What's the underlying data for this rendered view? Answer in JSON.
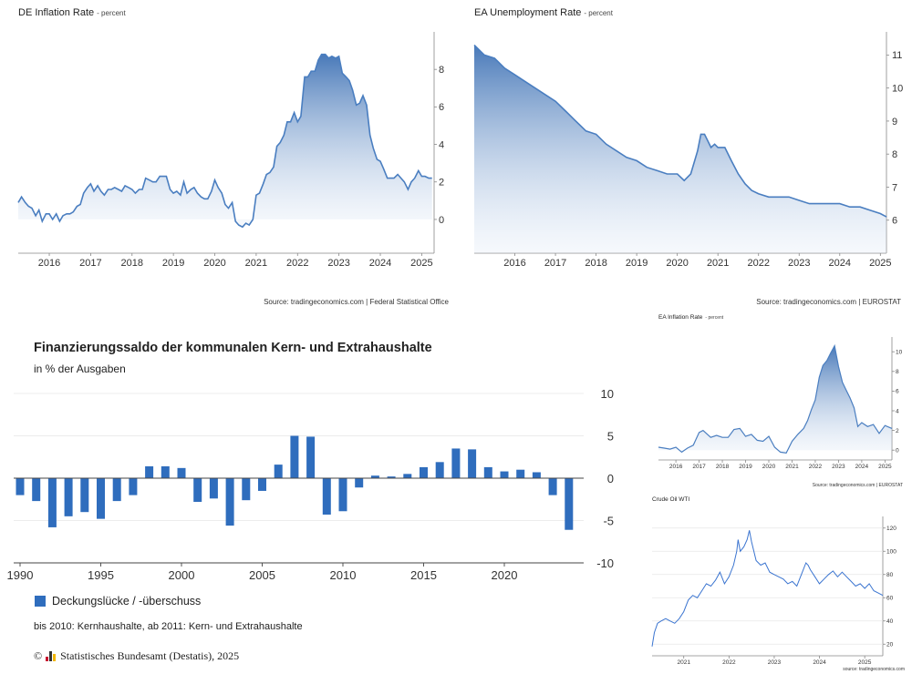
{
  "chart_data": [
    {
      "id": "de_inflation",
      "type": "area",
      "title": "DE Inflation Rate",
      "unit": "- percent",
      "source": "Source: tradingeconomics.com | Federal Statistical Office",
      "x_ticks": [
        "2016",
        "2017",
        "2018",
        "2019",
        "2020",
        "2021",
        "2022",
        "2023",
        "2024",
        "2025"
      ],
      "y_ticks": [
        "0",
        "2",
        "4",
        "6",
        "8"
      ],
      "ylim": [
        -1.8,
        10
      ],
      "xlim": [
        2015.25,
        2025.3
      ],
      "x": [
        2015.25,
        2015.33,
        2015.42,
        2015.5,
        2015.58,
        2015.67,
        2015.75,
        2015.83,
        2015.92,
        2016.0,
        2016.08,
        2016.17,
        2016.25,
        2016.33,
        2016.42,
        2016.5,
        2016.58,
        2016.67,
        2016.75,
        2016.83,
        2016.92,
        2017.0,
        2017.08,
        2017.17,
        2017.25,
        2017.33,
        2017.42,
        2017.5,
        2017.58,
        2017.67,
        2017.75,
        2017.83,
        2017.92,
        2018.0,
        2018.08,
        2018.17,
        2018.25,
        2018.33,
        2018.42,
        2018.5,
        2018.58,
        2018.67,
        2018.75,
        2018.83,
        2018.92,
        2019.0,
        2019.08,
        2019.17,
        2019.25,
        2019.33,
        2019.42,
        2019.5,
        2019.58,
        2019.67,
        2019.75,
        2019.83,
        2019.92,
        2020.0,
        2020.08,
        2020.17,
        2020.25,
        2020.33,
        2020.42,
        2020.5,
        2020.58,
        2020.67,
        2020.75,
        2020.83,
        2020.92,
        2021.0,
        2021.08,
        2021.17,
        2021.25,
        2021.33,
        2021.42,
        2021.5,
        2021.58,
        2021.67,
        2021.75,
        2021.83,
        2021.92,
        2022.0,
        2022.08,
        2022.17,
        2022.25,
        2022.33,
        2022.42,
        2022.5,
        2022.58,
        2022.67,
        2022.75,
        2022.83,
        2022.92,
        2023.0,
        2023.08,
        2023.17,
        2023.25,
        2023.33,
        2023.42,
        2023.5,
        2023.58,
        2023.67,
        2023.75,
        2023.83,
        2023.92,
        2024.0,
        2024.08,
        2024.17,
        2024.25,
        2024.33,
        2024.42,
        2024.5,
        2024.58,
        2024.67,
        2024.75,
        2024.83,
        2024.92,
        2025.0,
        2025.08,
        2025.17,
        2025.25
      ],
      "values": [
        0.9,
        1.2,
        0.9,
        0.7,
        0.6,
        0.2,
        0.5,
        -0.1,
        0.3,
        0.3,
        0.0,
        0.3,
        -0.1,
        0.2,
        0.3,
        0.3,
        0.4,
        0.7,
        0.8,
        1.4,
        1.7,
        1.9,
        1.5,
        1.8,
        1.5,
        1.3,
        1.6,
        1.6,
        1.7,
        1.6,
        1.5,
        1.8,
        1.7,
        1.6,
        1.4,
        1.6,
        1.6,
        2.2,
        2.1,
        2.0,
        2.0,
        2.3,
        2.3,
        2.3,
        1.6,
        1.4,
        1.5,
        1.3,
        2.0,
        1.4,
        1.6,
        1.7,
        1.4,
        1.2,
        1.1,
        1.1,
        1.5,
        2.1,
        1.7,
        1.4,
        0.8,
        0.6,
        0.9,
        -0.1,
        -0.3,
        -0.4,
        -0.2,
        -0.3,
        0.0,
        1.3,
        1.4,
        1.9,
        2.4,
        2.5,
        2.8,
        3.9,
        4.1,
        4.5,
        5.2,
        5.2,
        5.7,
        5.2,
        5.5,
        7.6,
        7.6,
        7.9,
        7.9,
        8.5,
        8.8,
        8.8,
        8.6,
        8.7,
        8.6,
        8.7,
        7.8,
        7.6,
        7.4,
        6.9,
        6.1,
        6.2,
        6.6,
        6.1,
        4.5,
        3.8,
        3.2,
        3.1,
        2.7,
        2.2,
        2.2,
        2.2,
        2.4,
        2.2,
        2.0,
        1.6,
        2.0,
        2.2,
        2.6,
        2.3,
        2.3,
        2.2,
        2.2
      ],
      "line_color": "#4a7ec0"
    },
    {
      "id": "ea_unemployment",
      "type": "area",
      "title": "EA Unemployment Rate",
      "unit": "- percent",
      "source": "Source: tradingeconomics.com | EUROSTAT",
      "x_ticks": [
        "2016",
        "2017",
        "2018",
        "2019",
        "2020",
        "2021",
        "2022",
        "2023",
        "2024",
        "2025"
      ],
      "y_ticks": [
        "6",
        "7",
        "8",
        "9",
        "10",
        "11"
      ],
      "ylim": [
        5.0,
        11.7
      ],
      "xlim": [
        2015.0,
        2025.15
      ],
      "x": [
        2015.0,
        2015.25,
        2015.5,
        2015.75,
        2016.0,
        2016.25,
        2016.5,
        2016.75,
        2017.0,
        2017.25,
        2017.5,
        2017.75,
        2018.0,
        2018.25,
        2018.5,
        2018.75,
        2019.0,
        2019.25,
        2019.5,
        2019.75,
        2020.0,
        2020.17,
        2020.33,
        2020.5,
        2020.58,
        2020.67,
        2020.75,
        2020.83,
        2020.92,
        2021.0,
        2021.17,
        2021.33,
        2021.5,
        2021.67,
        2021.83,
        2022.0,
        2022.25,
        2022.5,
        2022.75,
        2023.0,
        2023.25,
        2023.5,
        2023.75,
        2024.0,
        2024.25,
        2024.5,
        2024.75,
        2025.0,
        2025.15
      ],
      "values": [
        11.3,
        11.0,
        10.9,
        10.6,
        10.4,
        10.2,
        10.0,
        9.8,
        9.6,
        9.3,
        9.0,
        8.7,
        8.6,
        8.3,
        8.1,
        7.9,
        7.8,
        7.6,
        7.5,
        7.4,
        7.4,
        7.2,
        7.4,
        8.1,
        8.6,
        8.6,
        8.4,
        8.2,
        8.3,
        8.2,
        8.2,
        7.8,
        7.4,
        7.1,
        6.9,
        6.8,
        6.7,
        6.7,
        6.7,
        6.6,
        6.5,
        6.5,
        6.5,
        6.5,
        6.4,
        6.4,
        6.3,
        6.2,
        6.1
      ],
      "line_color": "#4a7ec0"
    },
    {
      "id": "finanzierungssaldo",
      "type": "bar",
      "title": "Finanzierungssaldo der kommunalen Kern- und Extrahaushalte",
      "subtitle": "in % der Ausgaben",
      "x_ticks": [
        "1990",
        "1995",
        "2000",
        "2005",
        "2010",
        "2015",
        "2020"
      ],
      "y_ticks": [
        "10",
        "5",
        "0",
        "-5",
        "-10"
      ],
      "ylim": [
        -10,
        10
      ],
      "categories": [
        1990,
        1991,
        1992,
        1993,
        1994,
        1995,
        1996,
        1997,
        1998,
        1999,
        2000,
        2001,
        2002,
        2003,
        2004,
        2005,
        2006,
        2007,
        2008,
        2009,
        2010,
        2011,
        2012,
        2013,
        2014,
        2015,
        2016,
        2017,
        2018,
        2019,
        2020,
        2021,
        2022,
        2023,
        2024
      ],
      "series": [
        {
          "name": "Deckungslücke / -überschuss",
          "values": [
            -2.0,
            -2.7,
            -5.8,
            -4.5,
            -4.0,
            -4.8,
            -2.7,
            -2.0,
            1.4,
            1.4,
            1.2,
            -2.8,
            -2.4,
            -5.6,
            -2.6,
            -1.5,
            1.6,
            5.0,
            4.9,
            -4.3,
            -3.9,
            -1.1,
            0.3,
            0.2,
            0.5,
            1.3,
            1.9,
            3.5,
            3.4,
            1.3,
            0.8,
            1.0,
            0.7,
            -2.0,
            -6.1
          ]
        }
      ],
      "bar_color": "#2f6dbd",
      "legend": "Deckungslücke / -überschuss",
      "note": "bis 2010: Kernhaushalte, ab 2011: Kern- und Extrahaushalte",
      "copyright_symbol": "©",
      "copyright": "Statistisches Bundesamt (Destatis), 2025"
    },
    {
      "id": "ea_inflation",
      "type": "area",
      "title": "EA Inflation Rate",
      "unit": "- percent",
      "source": "Source: tradingeconomics.com | EUROSTAT",
      "x_ticks": [
        "2016",
        "2017",
        "2018",
        "2019",
        "2020",
        "2021",
        "2022",
        "2023",
        "2024",
        "2025"
      ],
      "y_ticks": [
        "0",
        "2",
        "4",
        "6",
        "8",
        "10"
      ],
      "ylim": [
        -1.0,
        11.5
      ],
      "xlim": [
        2015.25,
        2025.3
      ],
      "x": [
        2015.25,
        2015.5,
        2015.75,
        2016.0,
        2016.25,
        2016.5,
        2016.75,
        2017.0,
        2017.17,
        2017.5,
        2017.75,
        2018.0,
        2018.25,
        2018.5,
        2018.75,
        2019.0,
        2019.25,
        2019.5,
        2019.75,
        2020.0,
        2020.25,
        2020.5,
        2020.75,
        2021.0,
        2021.25,
        2021.5,
        2021.67,
        2021.83,
        2022.0,
        2022.17,
        2022.33,
        2022.5,
        2022.67,
        2022.83,
        2023.0,
        2023.17,
        2023.33,
        2023.5,
        2023.67,
        2023.83,
        2024.0,
        2024.25,
        2024.5,
        2024.75,
        2025.0,
        2025.3
      ],
      "values": [
        0.3,
        0.2,
        0.1,
        0.3,
        -0.2,
        0.2,
        0.5,
        1.8,
        2.0,
        1.3,
        1.5,
        1.3,
        1.3,
        2.1,
        2.2,
        1.4,
        1.6,
        1.0,
        0.9,
        1.4,
        0.3,
        -0.2,
        -0.3,
        0.9,
        1.6,
        2.2,
        3.0,
        4.1,
        5.1,
        7.4,
        8.6,
        9.1,
        9.9,
        10.6,
        8.5,
        6.9,
        6.1,
        5.3,
        4.3,
        2.4,
        2.8,
        2.4,
        2.6,
        1.7,
        2.5,
        2.2
      ],
      "line_color": "#4a7ec0"
    },
    {
      "id": "crude_oil",
      "type": "line",
      "title": "Crude Oil WTI",
      "source": "source: tradingeconomics.com",
      "x_ticks": [
        "2021",
        "2022",
        "2023",
        "2024",
        "2025"
      ],
      "y_ticks": [
        "20",
        "40",
        "60",
        "80",
        "100",
        "120"
      ],
      "ylim": [
        10,
        130
      ],
      "xlim": [
        2020.3,
        2025.4
      ],
      "x": [
        2020.3,
        2020.35,
        2020.42,
        2020.5,
        2020.6,
        2020.7,
        2020.8,
        2020.9,
        2021.0,
        2021.1,
        2021.2,
        2021.3,
        2021.4,
        2021.5,
        2021.6,
        2021.7,
        2021.8,
        2021.9,
        2022.0,
        2022.1,
        2022.17,
        2022.2,
        2022.25,
        2022.33,
        2022.4,
        2022.45,
        2022.5,
        2022.55,
        2022.6,
        2022.7,
        2022.8,
        2022.9,
        2023.0,
        2023.1,
        2023.2,
        2023.3,
        2023.4,
        2023.5,
        2023.6,
        2023.7,
        2023.75,
        2023.8,
        2023.9,
        2024.0,
        2024.1,
        2024.2,
        2024.3,
        2024.4,
        2024.5,
        2024.6,
        2024.7,
        2024.8,
        2024.9,
        2025.0,
        2025.1,
        2025.2,
        2025.3,
        2025.4
      ],
      "values": [
        18,
        30,
        38,
        40,
        42,
        40,
        38,
        42,
        48,
        58,
        62,
        60,
        66,
        72,
        70,
        75,
        82,
        72,
        78,
        88,
        100,
        110,
        100,
        104,
        110,
        118,
        108,
        100,
        92,
        88,
        90,
        82,
        80,
        78,
        76,
        72,
        74,
        70,
        80,
        90,
        88,
        84,
        78,
        72,
        76,
        80,
        83,
        78,
        82,
        78,
        74,
        70,
        72,
        68,
        72,
        66,
        64,
        62
      ],
      "line_color": "#3a74d0"
    }
  ]
}
